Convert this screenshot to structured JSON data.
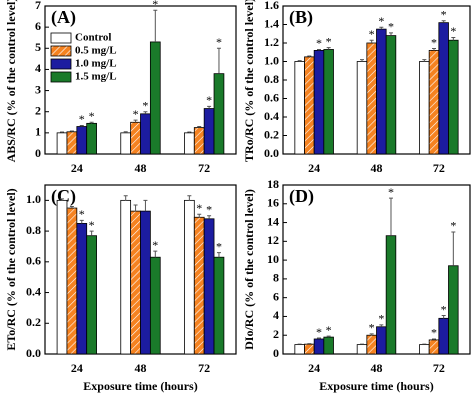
{
  "chart_data": [
    {
      "type": "bar",
      "panel": "(A)",
      "y_label": "ABS/RC (% of the control level)",
      "categories": [
        "24",
        "48",
        "72"
      ],
      "ylim": [
        0,
        7
      ],
      "yticks": [
        0,
        1,
        2,
        3,
        4,
        5,
        6,
        7
      ],
      "legend": "upper-left",
      "series": [
        {
          "name": "Control",
          "color": "#ffffff",
          "values": [
            1,
            1,
            1
          ],
          "errors": [
            0.04,
            0.05,
            0.04
          ],
          "significance": [
            null,
            null,
            null
          ]
        },
        {
          "name": "0.5 mg/L",
          "color": "#f58220",
          "values": [
            1.05,
            1.5,
            1.25
          ],
          "errors": [
            0.04,
            0.1,
            0.05
          ],
          "significance": [
            null,
            "*",
            null
          ]
        },
        {
          "name": "1.0 mg/L",
          "color": "#1c1ca0",
          "values": [
            1.3,
            1.9,
            2.15
          ],
          "errors": [
            0.05,
            0.1,
            0.1
          ],
          "significance": [
            "*",
            "*",
            "*"
          ]
        },
        {
          "name": "1.5 mg/L",
          "color": "#1a7a2a",
          "values": [
            1.45,
            5.3,
            3.8
          ],
          "errors": [
            0.05,
            1.5,
            1.2
          ],
          "significance": [
            "*",
            "*",
            "*"
          ]
        }
      ]
    },
    {
      "type": "bar",
      "panel": "(B)",
      "y_label": "TRo/RC (% of the control level)",
      "categories": [
        "24",
        "48",
        "72"
      ],
      "ylim": [
        0,
        1.6
      ],
      "yticks": [
        {
          "value": 0,
          "label": "0.0"
        },
        0.2,
        0.4,
        0.6,
        0.8,
        {
          "value": 1,
          "label": "1.0"
        },
        1.2,
        1.4,
        1.6
      ],
      "series": [
        {
          "name": "Control",
          "color": "#ffffff",
          "values": [
            1,
            1,
            1
          ],
          "errors": [
            0.01,
            0.02,
            0.02
          ],
          "significance": [
            null,
            null,
            null
          ]
        },
        {
          "name": "0.5 mg/L",
          "color": "#f58220",
          "values": [
            1.05,
            1.2,
            1.12
          ],
          "errors": [
            0.01,
            0.03,
            0.02
          ],
          "significance": [
            null,
            "*",
            "*"
          ]
        },
        {
          "name": "1.0 mg/L",
          "color": "#1c1ca0",
          "values": [
            1.12,
            1.35,
            1.42
          ],
          "errors": [
            0.01,
            0.02,
            0.02
          ],
          "significance": [
            "*",
            "*",
            "*"
          ]
        },
        {
          "name": "1.5 mg/L",
          "color": "#1a7a2a",
          "values": [
            1.13,
            1.28,
            1.23
          ],
          "errors": [
            0.02,
            0.03,
            0.03
          ],
          "significance": [
            "*",
            "*",
            "*"
          ]
        }
      ]
    },
    {
      "type": "bar",
      "panel": "(C)",
      "y_label": "ETo/RC (% of the control level)",
      "x_label": "Exposure time (hours)",
      "categories": [
        "24",
        "48",
        "72"
      ],
      "ylim": [
        0,
        1.1
      ],
      "yticks": [
        {
          "value": 0,
          "label": "0.0"
        },
        0.2,
        0.4,
        0.6,
        0.8,
        {
          "value": 1,
          "label": "1.0"
        }
      ],
      "series": [
        {
          "name": "Control",
          "color": "#ffffff",
          "values": [
            1,
            1,
            1
          ],
          "errors": [
            0.01,
            0.03,
            0.03
          ],
          "significance": [
            null,
            null,
            null
          ]
        },
        {
          "name": "0.5 mg/L",
          "color": "#f58220",
          "values": [
            0.95,
            0.93,
            0.89
          ],
          "errors": [
            0.01,
            0.04,
            0.02
          ],
          "significance": [
            null,
            null,
            "*"
          ]
        },
        {
          "name": "1.0 mg/L",
          "color": "#1c1ca0",
          "values": [
            0.85,
            0.93,
            0.88
          ],
          "errors": [
            0.02,
            0.07,
            0.02
          ],
          "significance": [
            "*",
            null,
            "*"
          ]
        },
        {
          "name": "1.5 mg/L",
          "color": "#1a7a2a",
          "values": [
            0.77,
            0.63,
            0.63
          ],
          "errors": [
            0.03,
            0.04,
            0.03
          ],
          "significance": [
            "*",
            "*",
            "*"
          ]
        }
      ]
    },
    {
      "type": "bar",
      "panel": "(D)",
      "y_label": "DIo/RC (% of the control level)",
      "x_label": "Exposure time (hours)",
      "categories": [
        "24",
        "48",
        "72"
      ],
      "ylim": [
        0,
        18
      ],
      "yticks": [
        0,
        2,
        4,
        6,
        8,
        10,
        12,
        14,
        16,
        18
      ],
      "series": [
        {
          "name": "Control",
          "color": "#ffffff",
          "values": [
            1,
            1,
            1
          ],
          "errors": [
            0.05,
            0.05,
            0.05
          ],
          "significance": [
            null,
            null,
            null
          ]
        },
        {
          "name": "0.5 mg/L",
          "color": "#f58220",
          "values": [
            1.05,
            2,
            1.5
          ],
          "errors": [
            0.05,
            0.15,
            0.1
          ],
          "significance": [
            null,
            "*",
            "*"
          ]
        },
        {
          "name": "1.0 mg/L",
          "color": "#1c1ca0",
          "values": [
            1.6,
            2.9,
            3.8
          ],
          "errors": [
            0.1,
            0.2,
            0.3
          ],
          "significance": [
            "*",
            "*",
            "*"
          ]
        },
        {
          "name": "1.5 mg/L",
          "color": "#1a7a2a",
          "values": [
            1.8,
            12.6,
            9.4
          ],
          "errors": [
            0.1,
            4,
            3.6
          ],
          "significance": [
            "*",
            "*",
            "*"
          ]
        }
      ]
    }
  ]
}
